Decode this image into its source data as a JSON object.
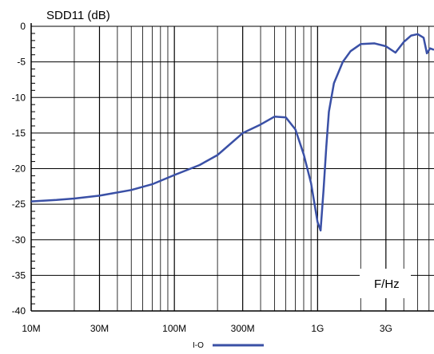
{
  "chart_data": {
    "type": "line",
    "title": "SDD11 (dB)",
    "xlabel": "F/Hz",
    "ylabel": "",
    "x_scale": "log",
    "xlim": [
      10000000.0,
      6500000000.0
    ],
    "ylim": [
      -40,
      0
    ],
    "grid": true,
    "legend_position": "bottom",
    "y_ticks": [
      0,
      -5,
      -10,
      -15,
      -20,
      -25,
      -30,
      -35,
      -40
    ],
    "x_ticks": [
      {
        "value": 10000000.0,
        "label": "10M"
      },
      {
        "value": 30000000.0,
        "label": "30M"
      },
      {
        "value": 100000000.0,
        "label": "100M"
      },
      {
        "value": 300000000.0,
        "label": "300M"
      },
      {
        "value": 1000000000.0,
        "label": "1G"
      },
      {
        "value": 3000000000.0,
        "label": "3G"
      }
    ],
    "series": [
      {
        "name": "I-O",
        "color": "#3a50a6",
        "x": [
          10000000.0,
          15000000.0,
          20000000.0,
          30000000.0,
          50000000.0,
          70000000.0,
          100000000.0,
          150000000.0,
          200000000.0,
          300000000.0,
          400000000.0,
          500000000.0,
          600000000.0,
          700000000.0,
          800000000.0,
          900000000.0,
          1000000000.0,
          1050000000.0,
          1100000000.0,
          1150000000.0,
          1200000000.0,
          1300000000.0,
          1500000000.0,
          1700000000.0,
          2000000000.0,
          2500000000.0,
          3000000000.0,
          3500000000.0,
          4000000000.0,
          4500000000.0,
          5000000000.0,
          5500000000.0,
          5800000000.0,
          6100000000.0,
          6500000000.0
        ],
        "y": [
          -24.6,
          -24.4,
          -24.2,
          -23.8,
          -23.0,
          -22.2,
          -20.9,
          -19.5,
          -18.1,
          -15.0,
          -13.8,
          -12.7,
          -12.8,
          -14.5,
          -18.0,
          -22.0,
          -27.5,
          -28.7,
          -23.0,
          -17.0,
          -12.0,
          -8.0,
          -5.0,
          -3.5,
          -2.5,
          -2.4,
          -2.8,
          -3.7,
          -2.2,
          -1.3,
          -1.1,
          -1.6,
          -3.8,
          -3.1,
          -3.3
        ]
      }
    ]
  }
}
